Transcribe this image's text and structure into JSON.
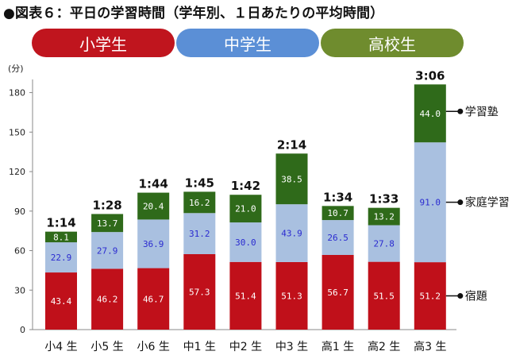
{
  "title": "●図表６：平日の学習時間（学年別、１日あたりの平均時間）",
  "groups": [
    {
      "label": "小学生",
      "color": "#c0151e"
    },
    {
      "label": "中学生",
      "color": "#5b8fd6"
    },
    {
      "label": "高校生",
      "color": "#6f8c2e"
    }
  ],
  "chart_data": {
    "type": "bar",
    "stacked": true,
    "ylabel": "(分)",
    "ylim": [
      0,
      190
    ],
    "yticks": [
      "0",
      "30",
      "60",
      "90",
      "120",
      "150",
      "180"
    ],
    "categories": [
      "小4 生",
      "小5 生",
      "小6 生",
      "中1 生",
      "中2 生",
      "中3 生",
      "高1 生",
      "高2 生",
      "高3 生"
    ],
    "totals": [
      "1:14",
      "1:28",
      "1:44",
      "1:45",
      "1:42",
      "2:14",
      "1:34",
      "1:33",
      "3:06"
    ],
    "series": [
      {
        "name": "宿題",
        "color": "#c0101a",
        "labelColor": "#ffffff",
        "values": [
          43.4,
          46.2,
          46.7,
          57.3,
          51.4,
          51.3,
          56.7,
          51.5,
          51.2
        ],
        "labels": [
          "43.4",
          "46.2",
          "46.7",
          "57.3",
          "51.4",
          "51.3",
          "56.7",
          "51.5",
          "51.2"
        ]
      },
      {
        "name": "家庭学習",
        "color": "#a9c0e0",
        "labelColor": "#2a2ad0",
        "values": [
          22.9,
          27.9,
          36.9,
          31.2,
          30.0,
          43.9,
          26.5,
          27.8,
          91.0
        ],
        "labels": [
          "22.9",
          "27.9",
          "36.9",
          "31.2",
          "30.0",
          "43.9",
          "26.5",
          "27.8",
          "91.0"
        ]
      },
      {
        "name": "学習塾",
        "color": "#2f6a1a",
        "labelColor": "#ffffff",
        "values": [
          8.1,
          13.7,
          20.4,
          16.2,
          21.0,
          38.5,
          10.7,
          13.2,
          44.0
        ],
        "labels": [
          "8.1",
          "13.7",
          "20.4",
          "16.2",
          "21.0",
          "38.5",
          "10.7",
          "13.2",
          "44.0"
        ]
      }
    ],
    "annotations": [
      "学習塾",
      "家庭学習",
      "宿題"
    ],
    "grid": false,
    "legend": "annotations-right"
  }
}
